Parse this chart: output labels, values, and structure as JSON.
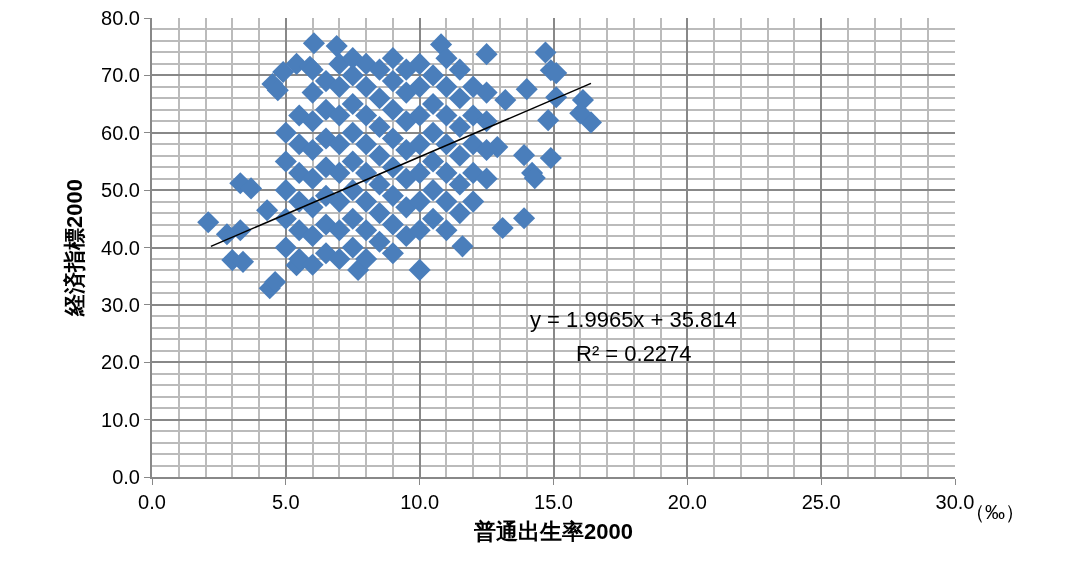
{
  "chart_data": {
    "type": "scatter",
    "xlabel": "普通出生率2000",
    "ylabel": "経済指標2000",
    "annotations": [
      "y = 1.9965x + 35.814",
      "R² = 0.2274",
      "（‰）"
    ],
    "xlim": [
      0,
      30
    ],
    "xticks": [
      {
        "value": 0,
        "label": "0.0"
      },
      {
        "value": 5,
        "label": "5.0"
      },
      {
        "value": 10,
        "label": "10.0"
      },
      {
        "value": 15,
        "label": "15.0"
      },
      {
        "value": 20,
        "label": "20.0"
      },
      {
        "value": 25,
        "label": "25.0"
      },
      {
        "value": 30,
        "label": "30.0"
      }
    ],
    "ylim": [
      0,
      80
    ],
    "yticks": [
      {
        "value": 0,
        "label": "0.0"
      },
      {
        "value": 10,
        "label": "10.0"
      },
      {
        "value": 20,
        "label": "20.0"
      },
      {
        "value": 30,
        "label": "30.0"
      },
      {
        "value": 40,
        "label": "40.0"
      },
      {
        "value": 50,
        "label": "50.0"
      },
      {
        "value": 60,
        "label": "60.0"
      },
      {
        "value": 70,
        "label": "70.0"
      },
      {
        "value": 80,
        "label": "80.0"
      }
    ],
    "grid": true,
    "marker": "diamond",
    "series": [
      {
        "color": "#4a7ebb",
        "x": [
          2.1,
          2.8,
          3.0,
          3.3,
          3.7,
          3.3,
          3.4,
          4.4,
          4.6,
          4.5,
          4.7,
          4.9,
          6.05,
          6.9,
          5.4,
          5.9,
          10.0,
          10.8,
          12.5,
          14.7,
          14.9,
          15.1,
          16.1,
          16.4,
          16.0,
          15.1,
          14.8,
          13.9,
          14.2,
          14.9,
          14.3,
          13.1,
          13.9,
          11.6,
          7.7,
          5.4,
          13.2,
          14.0,
          4.3,
          12.9,
          5,
          5,
          5,
          5,
          5,
          5.5,
          5.5,
          5.5,
          5.5,
          5.5,
          5.5,
          6,
          6,
          6,
          6,
          6,
          6,
          6,
          6,
          6.5,
          6.5,
          6.5,
          6.5,
          6.5,
          6.5,
          6.5,
          7,
          7,
          7,
          7,
          7,
          7,
          7,
          7,
          7.5,
          7.5,
          7.5,
          7.5,
          7.5,
          7.5,
          7.5,
          7.5,
          8,
          8,
          8,
          8,
          8,
          8,
          8,
          8,
          8.5,
          8.5,
          8.5,
          8.5,
          8.5,
          8.5,
          8.5,
          9,
          9,
          9,
          9,
          9,
          9,
          9,
          9,
          9.5,
          9.5,
          9.5,
          9.5,
          9.5,
          9.5,
          9.5,
          10,
          10,
          10,
          10,
          10,
          10,
          10,
          10.5,
          10.5,
          10.5,
          10.5,
          10.5,
          10.5,
          11,
          11,
          11,
          11,
          11,
          11,
          11,
          11.5,
          11.5,
          11.5,
          11.5,
          11.5,
          11.5,
          12,
          12,
          12,
          12,
          12,
          12.5,
          12.5,
          12.5,
          12.5
        ],
        "values": [
          44.4,
          42.3,
          37.8,
          51.2,
          50.3,
          43.0,
          37.5,
          32.9,
          34.0,
          68.5,
          67.4,
          70.6,
          75.6,
          75.1,
          72.0,
          71.5,
          36.1,
          75.4,
          73.7,
          74.0,
          70.9,
          70.4,
          65.7,
          61.8,
          63.4,
          66.2,
          62.2,
          56.1,
          53.0,
          55.6,
          52.1,
          43.4,
          45.1,
          40.2,
          36.1,
          36.9,
          65.7,
          67.6,
          46.5,
          57.5,
          40,
          45,
          50,
          55,
          60,
          38,
          43,
          48,
          53,
          58,
          63,
          37,
          42,
          47,
          52,
          57,
          62,
          67,
          71,
          39,
          44,
          49,
          54,
          59,
          64,
          69,
          38,
          43,
          48,
          53,
          58,
          63,
          68,
          72,
          40,
          45,
          50,
          55,
          60,
          65,
          70,
          73,
          38,
          43,
          48,
          53,
          58,
          63,
          68,
          72,
          41,
          46,
          51,
          56,
          61,
          66,
          71,
          39,
          44,
          49,
          54,
          59,
          64,
          69,
          73,
          42,
          47,
          52,
          57,
          62,
          67,
          71,
          43,
          48,
          53,
          58,
          63,
          68,
          72,
          45,
          50,
          55,
          60,
          65,
          70,
          43,
          48,
          53,
          58,
          63,
          68,
          73,
          46,
          51,
          56,
          61,
          66,
          71,
          48,
          53,
          58,
          63,
          68,
          52,
          57,
          62,
          67
        ]
      },
      {
        "type": "line",
        "color": "#000000",
        "marker": "none",
        "line_style": "solid",
        "x": [
          2.2,
          16.4
        ],
        "values": [
          40.2,
          68.6
        ]
      }
    ]
  }
}
